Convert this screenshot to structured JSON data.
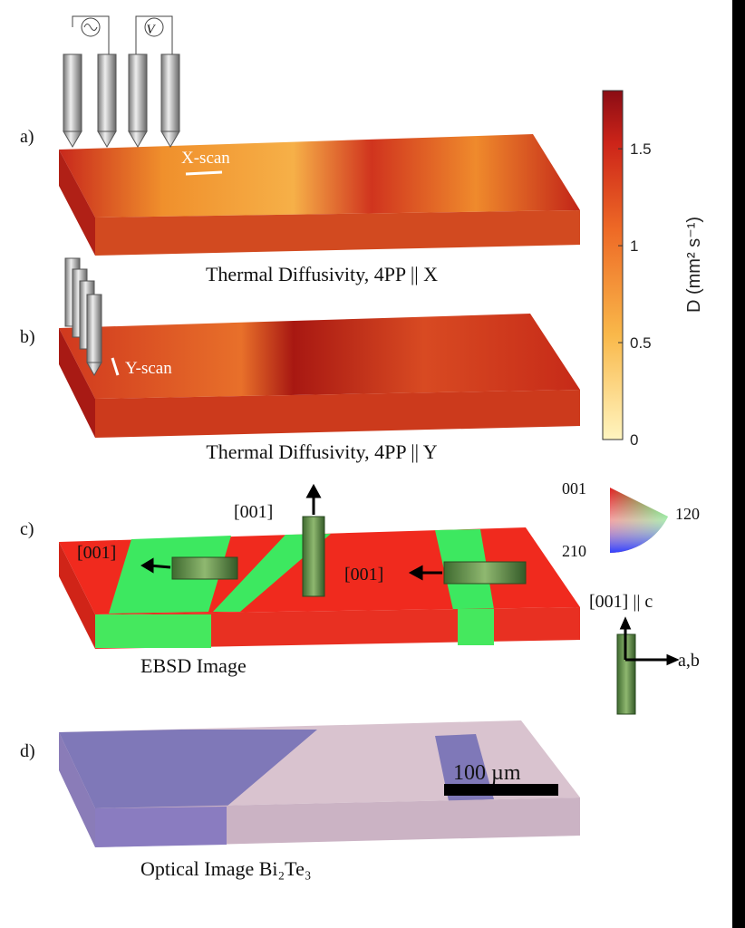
{
  "panels": [
    {
      "label": "a)",
      "scan": "X-scan",
      "caption": "Thermal Diffusivity, 4PP || X"
    },
    {
      "label": "b)",
      "scan": "Y-scan",
      "caption": "Thermal Diffusivity, 4PP || Y"
    },
    {
      "label": "c)",
      "caption": "EBSD Image",
      "directions": [
        "[001]",
        "[001]",
        "[001]"
      ]
    },
    {
      "label": "d)",
      "caption": "Optical Image Bi₂Te₃",
      "scale_bar": "100 µm"
    }
  ],
  "voltmeter": "V",
  "colorbar": {
    "label": "D (mm² s⁻¹)",
    "lim": [
      0,
      1.8
    ],
    "ticks": [
      0,
      0.5,
      1,
      1.5
    ]
  },
  "ipf_key": {
    "corners": [
      "001",
      "120",
      "210"
    ]
  },
  "crystal_axes": {
    "c_axis": "[001] || c",
    "ab_axis": "a,b"
  }
}
